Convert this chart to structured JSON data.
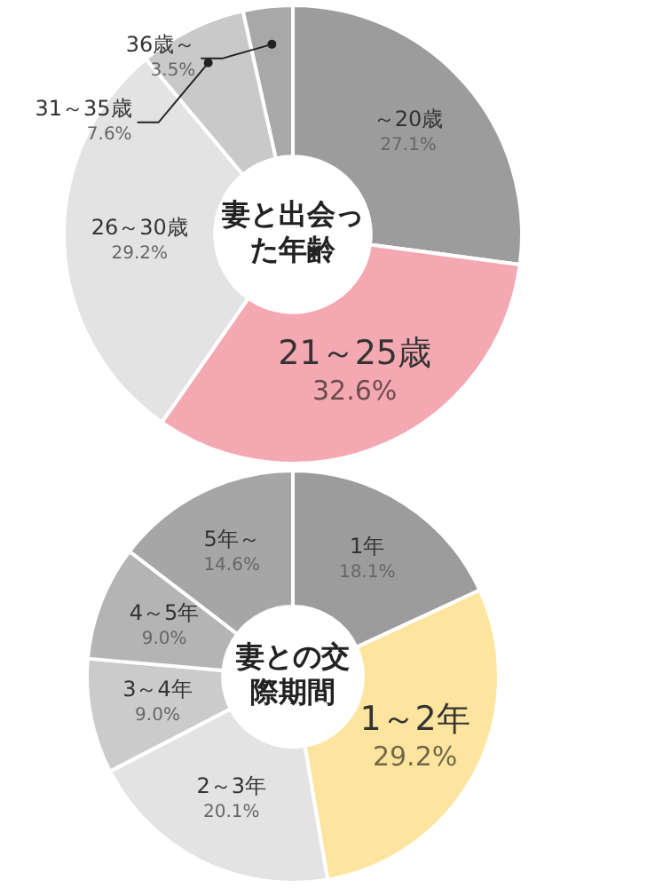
{
  "chart_data": [
    {
      "type": "donut",
      "title": "妻と出会った年齢",
      "categories": [
        "～20歳",
        "21～25歳",
        "26～30歳",
        "31～35歳",
        "36歳～"
      ],
      "values": [
        27.1,
        32.6,
        29.2,
        7.6,
        3.5
      ],
      "value_labels": [
        "27.1%",
        "32.6%",
        "29.2%",
        "7.6%",
        "3.5%"
      ],
      "colors": [
        "#9c9c9c",
        "#f4a8b2",
        "#e3e3e3",
        "#c9c9c9",
        "#a8a8a8"
      ],
      "legend": false
    },
    {
      "type": "donut",
      "title": "妻との交際期間",
      "categories": [
        "1年",
        "1～2年",
        "2～3年",
        "3～4年",
        "4～5年",
        "5年～"
      ],
      "values": [
        18.1,
        29.2,
        20.1,
        9.0,
        9.0,
        14.6
      ],
      "value_labels": [
        "18.1%",
        "29.2%",
        "20.1%",
        "9.0%",
        "9.0%",
        "14.6%"
      ],
      "colors": [
        "#9c9c9c",
        "#fde5a0",
        "#e3e3e3",
        "#cbcbcb",
        "#b4b4b4",
        "#a6a6a6"
      ],
      "legend": false
    }
  ]
}
